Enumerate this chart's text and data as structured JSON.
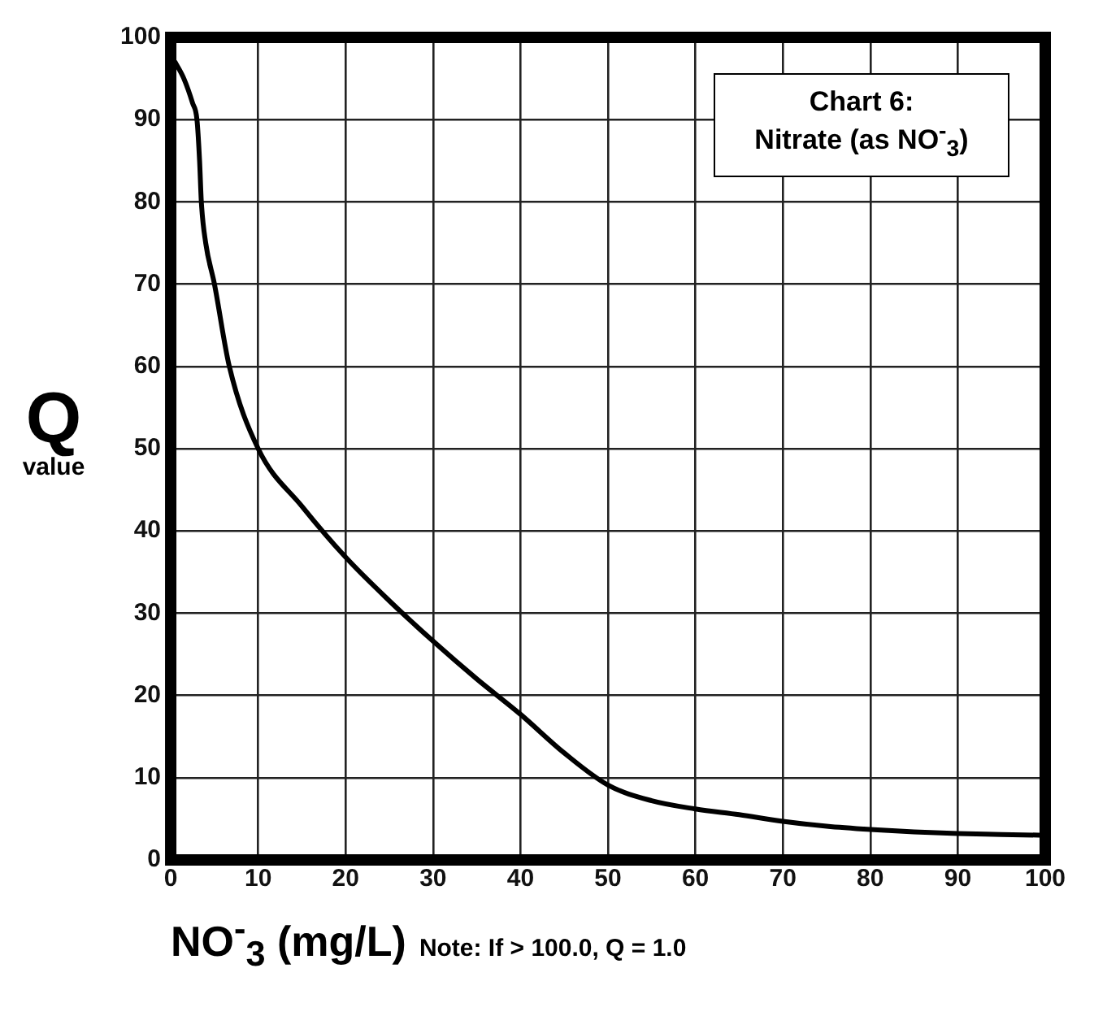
{
  "chart_data": {
    "type": "line",
    "title": "Chart 6: Nitrate (as NO$^{-}$$_{3}$)",
    "xlabel": "NO$^{-}$$_{3}$ (mg/L)",
    "ylabel": "Q value",
    "annotations": [
      "Note: If > 100.0, Q = 1.0"
    ],
    "series": [
      {
        "color": "#000000",
        "x": [
          0.5,
          1.5,
          2.5,
          3,
          3.3,
          3.5,
          4,
          5,
          6.7,
          10,
          15,
          20,
          25,
          30,
          35,
          40,
          45,
          50,
          55,
          60,
          65,
          70,
          75,
          80,
          85,
          90,
          95,
          100
        ],
        "values": [
          97,
          95,
          92,
          90,
          85,
          80,
          75,
          70,
          60,
          50,
          43,
          36.8,
          31.5,
          26.6,
          22,
          17.7,
          13,
          9.1,
          7.2,
          6.2,
          5.5,
          4.7,
          4.1,
          3.7,
          3.4,
          3.2,
          3.1,
          3.0
        ]
      }
    ],
    "xlim": [
      0,
      100
    ],
    "xticks": [
      0,
      10,
      20,
      30,
      40,
      50,
      60,
      70,
      80,
      90,
      100
    ],
    "ylim": [
      0,
      100
    ],
    "yticks": [
      0,
      10,
      20,
      30,
      40,
      50,
      60,
      70,
      80,
      90,
      100
    ],
    "grid": true,
    "legend": false,
    "marker": "none",
    "line_style": "solid"
  }
}
